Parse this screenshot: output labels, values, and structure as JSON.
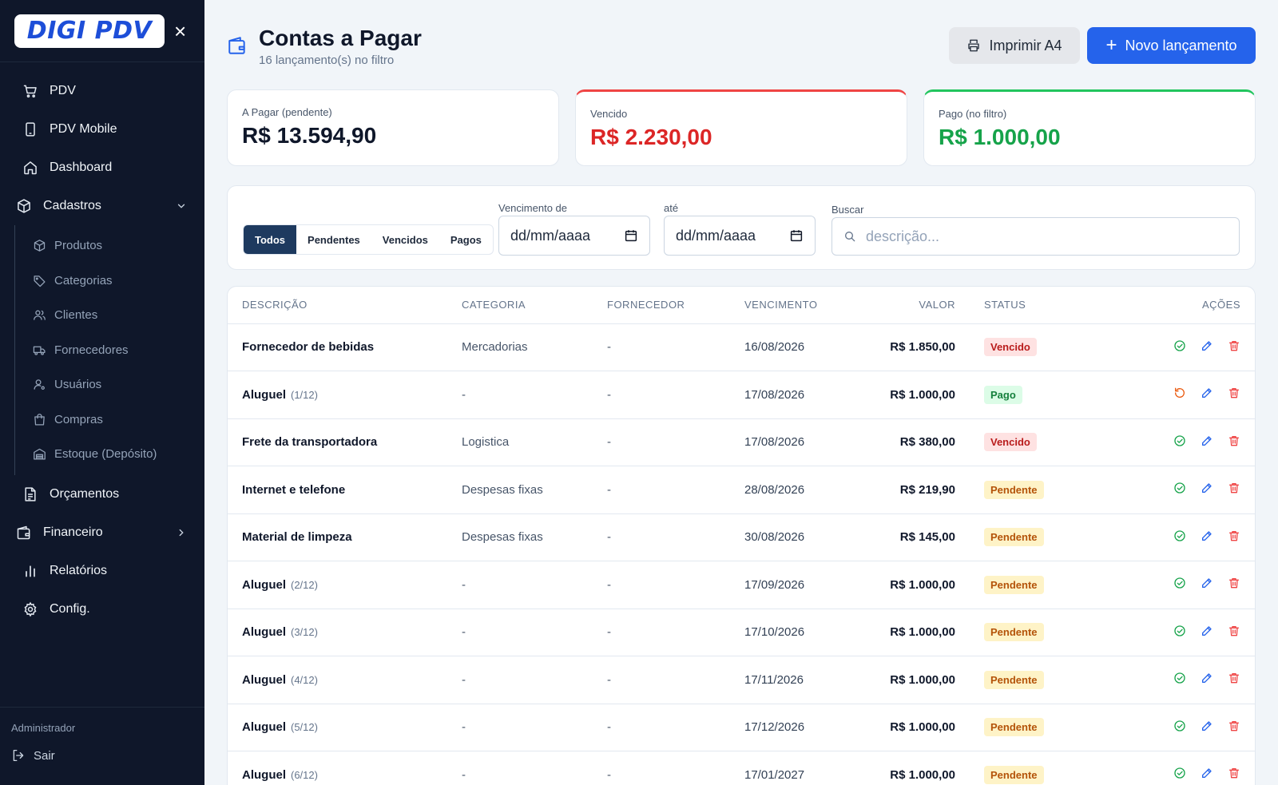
{
  "sidebar": {
    "logo_text": "DIGI PDV",
    "close_label": "×",
    "items": [
      {
        "label": "PDV",
        "icon": "cart-icon"
      },
      {
        "label": "PDV Mobile",
        "icon": "mobile-icon"
      },
      {
        "label": "Dashboard",
        "icon": "home-icon"
      }
    ],
    "cadastros": {
      "label": "Cadastros",
      "sub": [
        {
          "label": "Produtos",
          "icon": "box-icon"
        },
        {
          "label": "Categorias",
          "icon": "tag-icon"
        },
        {
          "label": "Clientes",
          "icon": "users-icon"
        },
        {
          "label": "Fornecedores",
          "icon": "truck-icon"
        },
        {
          "label": "Usuários",
          "icon": "user-cog-icon"
        },
        {
          "label": "Compras",
          "icon": "shopping-bag-icon"
        },
        {
          "label": "Estoque (Depósito)",
          "icon": "warehouse-icon"
        }
      ]
    },
    "orcamentos": "Orçamentos",
    "financeiro": "Financeiro",
    "relatorios": "Relatórios",
    "config": "Config.",
    "role": "Administrador",
    "logout": "Sair"
  },
  "header": {
    "title": "Contas a Pagar",
    "subtitle": "16 lançamento(s) no filtro",
    "print_label": "Imprimir A4",
    "new_label": "Novo lançamento"
  },
  "cards": {
    "pendente": {
      "label": "A Pagar (pendente)",
      "value": "R$ 13.594,90"
    },
    "vencido": {
      "label": "Vencido",
      "value": "R$ 2.230,00"
    },
    "pago": {
      "label": "Pago (no filtro)",
      "value": "R$ 1.000,00"
    }
  },
  "filters": {
    "tabs": [
      "Todos",
      "Pendentes",
      "Vencidos",
      "Pagos"
    ],
    "active_tab": "Todos",
    "venc_de_label": "Vencimento de",
    "venc_de_value": "dd/mm/aaaa",
    "ate_label": "até",
    "ate_value": "dd/mm/aaaa",
    "buscar_label": "Buscar",
    "buscar_placeholder": "descrição..."
  },
  "table": {
    "columns": {
      "descricao": "DESCRIÇÃO",
      "categoria": "CATEGORIA",
      "fornecedor": "FORNECEDOR",
      "vencimento": "VENCIMENTO",
      "valor": "VALOR",
      "status": "STATUS",
      "acoes": "AÇÕES"
    },
    "rows": [
      {
        "desc": "Fornecedor de bebidas",
        "inst": "",
        "cat": "Mercadorias",
        "forn": "-",
        "venc": "16/08/2026",
        "valor": "R$ 1.850,00",
        "status": "Vencido",
        "kind": "vencido"
      },
      {
        "desc": "Aluguel",
        "inst": "(1/12)",
        "cat": "-",
        "forn": "-",
        "venc": "17/08/2026",
        "valor": "R$ 1.000,00",
        "status": "Pago",
        "kind": "pago"
      },
      {
        "desc": "Frete da transportadora",
        "inst": "",
        "cat": "Logistica",
        "forn": "-",
        "venc": "17/08/2026",
        "valor": "R$ 380,00",
        "status": "Vencido",
        "kind": "vencido"
      },
      {
        "desc": "Internet e telefone",
        "inst": "",
        "cat": "Despesas fixas",
        "forn": "-",
        "venc": "28/08/2026",
        "valor": "R$ 219,90",
        "status": "Pendente",
        "kind": "pendente"
      },
      {
        "desc": "Material de limpeza",
        "inst": "",
        "cat": "Despesas fixas",
        "forn": "-",
        "venc": "30/08/2026",
        "valor": "R$ 145,00",
        "status": "Pendente",
        "kind": "pendente"
      },
      {
        "desc": "Aluguel",
        "inst": "(2/12)",
        "cat": "-",
        "forn": "-",
        "venc": "17/09/2026",
        "valor": "R$ 1.000,00",
        "status": "Pendente",
        "kind": "pendente"
      },
      {
        "desc": "Aluguel",
        "inst": "(3/12)",
        "cat": "-",
        "forn": "-",
        "venc": "17/10/2026",
        "valor": "R$ 1.000,00",
        "status": "Pendente",
        "kind": "pendente"
      },
      {
        "desc": "Aluguel",
        "inst": "(4/12)",
        "cat": "-",
        "forn": "-",
        "venc": "17/11/2026",
        "valor": "R$ 1.000,00",
        "status": "Pendente",
        "kind": "pendente"
      },
      {
        "desc": "Aluguel",
        "inst": "(5/12)",
        "cat": "-",
        "forn": "-",
        "venc": "17/12/2026",
        "valor": "R$ 1.000,00",
        "status": "Pendente",
        "kind": "pendente"
      },
      {
        "desc": "Aluguel",
        "inst": "(6/12)",
        "cat": "-",
        "forn": "-",
        "venc": "17/01/2027",
        "valor": "R$ 1.000,00",
        "status": "Pendente",
        "kind": "pendente"
      }
    ]
  },
  "colors": {
    "sidebar_bg": "#0f172a",
    "primary": "#2563eb",
    "danger": "#dc2626",
    "success": "#16a34a",
    "warning": "#b45309"
  }
}
